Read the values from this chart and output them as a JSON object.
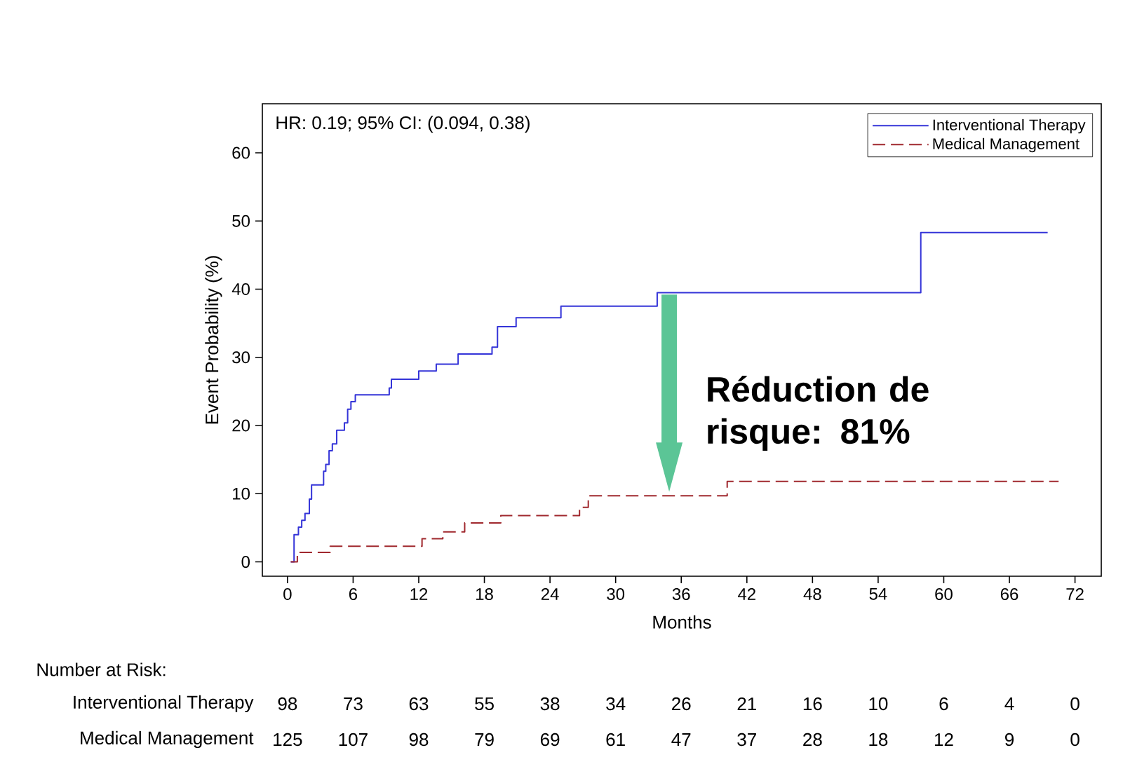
{
  "chart_data": {
    "type": "step",
    "xlabel": "Months",
    "ylabel": "Event Probability (%)",
    "xlim": [
      -2.3,
      74.4
    ],
    "ylim": [
      -2.1,
      67.2
    ],
    "xticks": [
      0,
      6,
      12,
      18,
      24,
      30,
      36,
      42,
      48,
      54,
      60,
      66,
      72
    ],
    "yticks": [
      0,
      10,
      20,
      30,
      40,
      50,
      60
    ],
    "legend": "top right",
    "series": [
      {
        "name": "Interventional Therapy",
        "color": "#3434d8",
        "line_style": "solid",
        "x": [
          0.3,
          0.6,
          1.0,
          1.3,
          1.6,
          2.0,
          2.2,
          3.3,
          3.5,
          3.8,
          4.1,
          4.5,
          5.2,
          5.5,
          5.8,
          6.2,
          9.3,
          9.5,
          12.0,
          13.6,
          15.6,
          18.7,
          19.2,
          20.9,
          25.0,
          33.8,
          57.9,
          69.5
        ],
        "values": [
          0,
          4,
          5.1,
          6.1,
          7.1,
          9.2,
          11.3,
          13.3,
          14.3,
          16.3,
          17.3,
          19.3,
          20.4,
          22.4,
          23.5,
          24.5,
          25.5,
          26.8,
          28.0,
          29.0,
          30.5,
          31.5,
          34.5,
          35.8,
          37.5,
          39.5,
          48.3,
          48.3
        ]
      },
      {
        "name": "Medical Management",
        "color": "#a0282e",
        "line_style": "dashed",
        "x": [
          0.3,
          0.9,
          3.9,
          12.3,
          14.2,
          16.2,
          19.5,
          26.7,
          27.5,
          40.2,
          70.5
        ],
        "values": [
          0,
          1.4,
          2.3,
          3.4,
          4.4,
          5.7,
          6.8,
          8.0,
          9.7,
          11.8,
          11.8
        ]
      }
    ],
    "annotations": [
      "HR: 0.19; 95% CI: (0.094, 0.38)",
      "Réduction de risque: 81%",
      "Number at Risk:",
      "Interventional Therapy",
      "Medical Management",
      "98",
      "73",
      "63",
      "55",
      "38",
      "34",
      "26",
      "21",
      "16",
      "10",
      "6",
      "4",
      "0",
      "125",
      "107",
      "98",
      "79",
      "69",
      "61",
      "47",
      "37",
      "28",
      "18",
      "12",
      "9",
      "0"
    ]
  }
}
